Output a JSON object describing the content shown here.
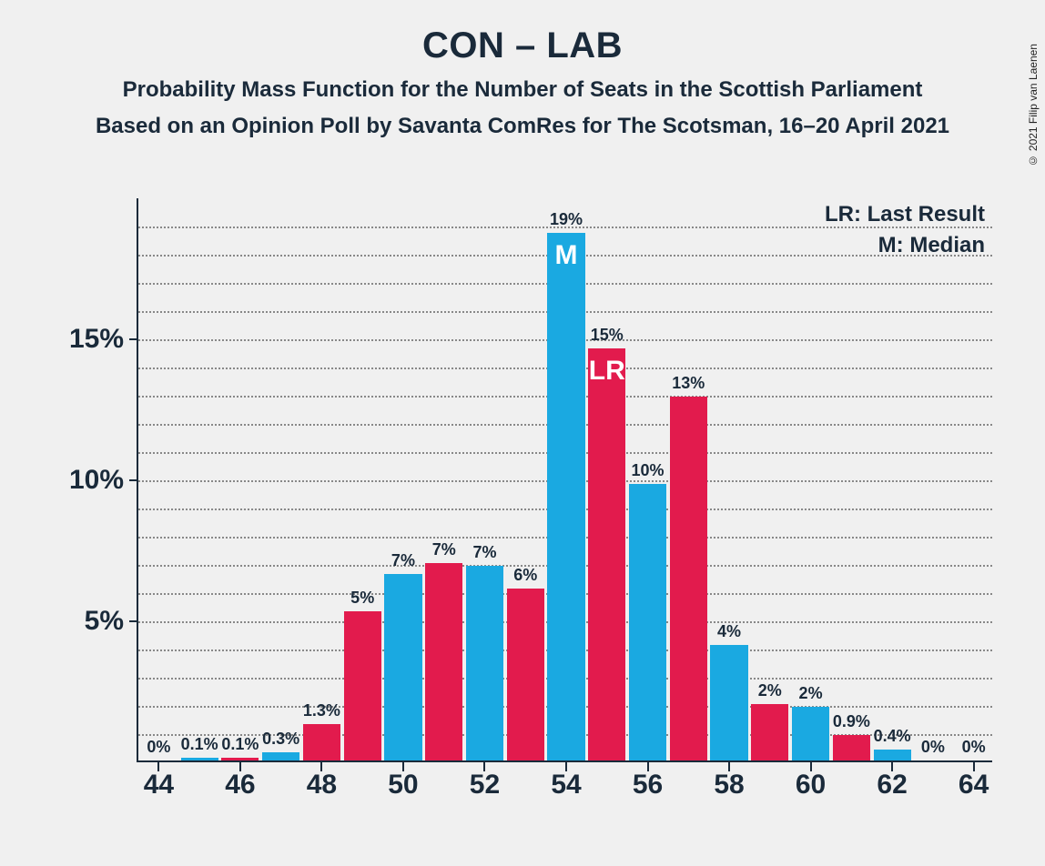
{
  "copyright": "© 2021 Filip van Laenen",
  "title": "CON – LAB",
  "title_fontsize": 40,
  "subtitle1": "Probability Mass Function for the Number of Seats in the Scottish Parliament",
  "subtitle2": "Based on an Opinion Poll by Savanta ComRes for The Scotsman, 16–20 April 2021",
  "subtitle_fontsize": 24,
  "legend": {
    "lr": "LR: Last Result",
    "m": "M: Median",
    "fontsize": 24
  },
  "chart": {
    "type": "bar",
    "background_color": "#f0f0f0",
    "text_color": "#1a2a3a",
    "grid_color": "#888888",
    "ylim": [
      0,
      20
    ],
    "y_major_ticks": [
      5,
      10,
      15
    ],
    "y_major_labels": [
      "5%",
      "10%",
      "15%"
    ],
    "y_minor_step": 1,
    "y_label_fontsize": 30,
    "x_ticks": [
      44,
      46,
      48,
      50,
      52,
      54,
      56,
      58,
      60,
      62,
      64
    ],
    "x_label_fontsize": 30,
    "xlim": [
      43.5,
      64.5
    ],
    "bar_width": 0.92,
    "bar_label_fontsize": 18,
    "inner_label_fontsize": 30,
    "bars": [
      {
        "x": 44,
        "value": 0.0,
        "label": "0%",
        "color": "#e21b4d"
      },
      {
        "x": 45,
        "value": 0.1,
        "label": "0.1%",
        "color": "#1aa9e1"
      },
      {
        "x": 46,
        "value": 0.1,
        "label": "0.1%",
        "color": "#e21b4d"
      },
      {
        "x": 47,
        "value": 0.3,
        "label": "0.3%",
        "color": "#1aa9e1"
      },
      {
        "x": 48,
        "value": 1.3,
        "label": "1.3%",
        "color": "#e21b4d"
      },
      {
        "x": 49,
        "value": 5.3,
        "label": "5%",
        "color": "#e21b4d"
      },
      {
        "x": 50,
        "value": 6.6,
        "label": "7%",
        "color": "#1aa9e1"
      },
      {
        "x": 51,
        "value": 7.0,
        "label": "7%",
        "color": "#e21b4d"
      },
      {
        "x": 52,
        "value": 6.9,
        "label": "7%",
        "color": "#1aa9e1"
      },
      {
        "x": 53,
        "value": 6.1,
        "label": "6%",
        "color": "#e21b4d"
      },
      {
        "x": 54,
        "value": 18.7,
        "label": "19%",
        "color": "#1aa9e1",
        "inner_label": "M"
      },
      {
        "x": 55,
        "value": 14.6,
        "label": "15%",
        "color": "#e21b4d",
        "inner_label": "LR"
      },
      {
        "x": 56,
        "value": 9.8,
        "label": "10%",
        "color": "#1aa9e1"
      },
      {
        "x": 57,
        "value": 12.9,
        "label": "13%",
        "color": "#e21b4d"
      },
      {
        "x": 58,
        "value": 4.1,
        "label": "4%",
        "color": "#1aa9e1"
      },
      {
        "x": 59,
        "value": 2.0,
        "label": "2%",
        "color": "#e21b4d"
      },
      {
        "x": 60,
        "value": 1.9,
        "label": "2%",
        "color": "#1aa9e1"
      },
      {
        "x": 61,
        "value": 0.9,
        "label": "0.9%",
        "color": "#e21b4d"
      },
      {
        "x": 62,
        "value": 0.4,
        "label": "0.4%",
        "color": "#1aa9e1"
      },
      {
        "x": 63,
        "value": 0.0,
        "label": "0%",
        "color": "#e21b4d"
      },
      {
        "x": 64,
        "value": 0.0,
        "label": "0%",
        "color": "#1aa9e1"
      }
    ]
  }
}
